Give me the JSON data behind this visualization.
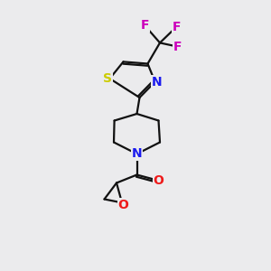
{
  "background_color": "#ebebed",
  "atom_colors": {
    "C": "#000000",
    "N": "#1a1aee",
    "O": "#ee1a1a",
    "S": "#cccc00",
    "F": "#cc00bb"
  },
  "bond_color": "#111111",
  "bond_lw": 1.6,
  "fig_size": [
    3.0,
    3.0
  ],
  "dpi": 100,
  "xlim": [
    0,
    10
  ],
  "ylim": [
    0,
    10
  ]
}
